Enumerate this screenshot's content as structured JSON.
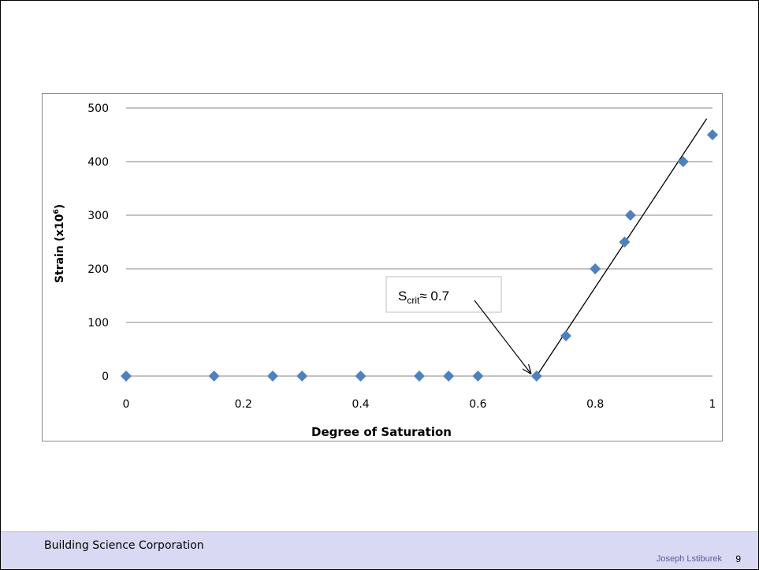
{
  "footer": {
    "organization": "Building Science Corporation",
    "author": "Joseph Lstiburek",
    "page_number": "9"
  },
  "chart_data": {
    "type": "scatter",
    "title": "",
    "xlabel": "Degree of Saturation",
    "ylabel_main": "Strain (x10",
    "ylabel_sup": "6",
    "ylabel_end": ")",
    "xlim": [
      0,
      1
    ],
    "ylim": [
      0,
      500
    ],
    "xticks": [
      0,
      0.2,
      0.4,
      0.6,
      0.8,
      1
    ],
    "xtick_labels": [
      "0",
      "0.2",
      "0.4",
      "0.6",
      "0.8",
      "1"
    ],
    "yticks": [
      0,
      100,
      200,
      300,
      400,
      500
    ],
    "ytick_labels": [
      "0",
      "100",
      "200",
      "300",
      "400",
      "500"
    ],
    "grid": "horizontal",
    "marker_color": "#4f81bd",
    "points": [
      {
        "x": 0,
        "y": 0
      },
      {
        "x": 0.15,
        "y": 0
      },
      {
        "x": 0.25,
        "y": 0
      },
      {
        "x": 0.3,
        "y": 0
      },
      {
        "x": 0.4,
        "y": 0
      },
      {
        "x": 0.5,
        "y": 0
      },
      {
        "x": 0.55,
        "y": 0
      },
      {
        "x": 0.6,
        "y": 0
      },
      {
        "x": 0.7,
        "y": 0
      },
      {
        "x": 0.75,
        "y": 75
      },
      {
        "x": 0.8,
        "y": 200
      },
      {
        "x": 0.85,
        "y": 250
      },
      {
        "x": 0.86,
        "y": 300
      },
      {
        "x": 0.95,
        "y": 400
      },
      {
        "x": 1,
        "y": 450
      }
    ],
    "trend_line": {
      "x1": 0.7,
      "y1": 0,
      "x2": 0.99,
      "y2": 480
    },
    "annotation": {
      "text_main": "S",
      "text_sub": "crit",
      "text_end": "≈ 0.7",
      "arrow_to": {
        "x": 0.69,
        "y": 5
      }
    }
  }
}
